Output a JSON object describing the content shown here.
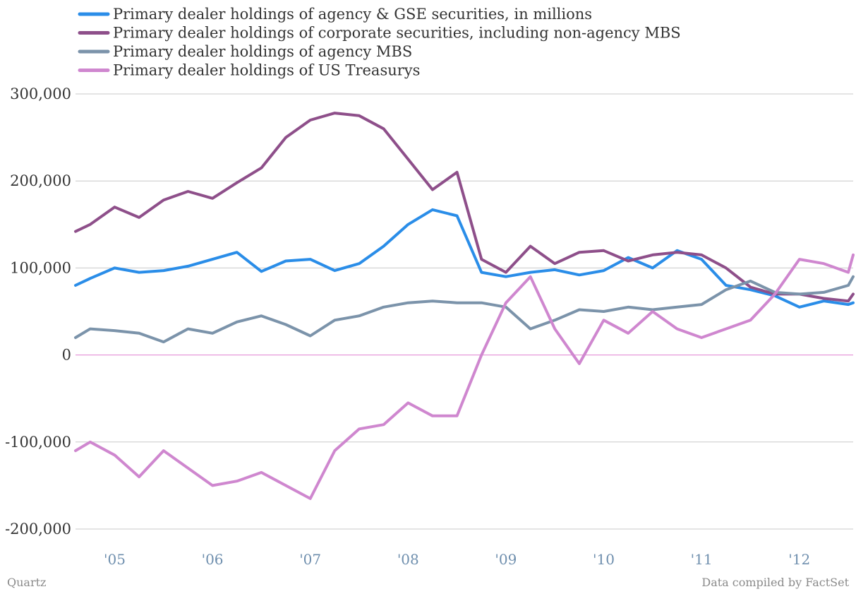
{
  "chart_data": {
    "type": "line",
    "title": "",
    "xlabel": "",
    "ylabel": "",
    "ylim": [
      -200000,
      300000
    ],
    "xlim": [
      2004.6,
      2012.55
    ],
    "x_ticks": [
      2005,
      2006,
      2007,
      2008,
      2009,
      2010,
      2011,
      2012
    ],
    "x_tick_labels": [
      "'05",
      "'06",
      "'07",
      "'08",
      "'09",
      "'10",
      "'11",
      "'12"
    ],
    "y_ticks": [
      300000,
      200000,
      100000,
      0,
      -100000,
      -200000
    ],
    "y_tick_labels": [
      "300,000",
      "200,000",
      "100,000",
      "0",
      "-100,000",
      "-200,000"
    ],
    "grid": true,
    "zero_line_color": "#e07fd0",
    "legend_position": "top-left",
    "x": [
      2004.6,
      2004.75,
      2005.0,
      2005.25,
      2005.5,
      2005.75,
      2006.0,
      2006.25,
      2006.5,
      2006.75,
      2007.0,
      2007.25,
      2007.5,
      2007.75,
      2008.0,
      2008.25,
      2008.5,
      2008.75,
      2009.0,
      2009.25,
      2009.5,
      2009.75,
      2010.0,
      2010.25,
      2010.5,
      2010.75,
      2011.0,
      2011.25,
      2011.5,
      2011.75,
      2012.0,
      2012.25,
      2012.5,
      2012.55
    ],
    "series": [
      {
        "name": "Primary dealer holdings of agency & GSE securities, in millions",
        "color": "#2a8de8",
        "values": [
          80000,
          88000,
          100000,
          95000,
          97000,
          102000,
          110000,
          118000,
          96000,
          108000,
          110000,
          97000,
          105000,
          125000,
          150000,
          167000,
          160000,
          95000,
          90000,
          95000,
          98000,
          92000,
          97000,
          112000,
          100000,
          120000,
          110000,
          80000,
          75000,
          68000,
          55000,
          62000,
          58000,
          60000
        ]
      },
      {
        "name": "Primary dealer holdings of corporate securities, including non-agency MBS",
        "color": "#8e4f8a",
        "values": [
          142000,
          150000,
          170000,
          158000,
          178000,
          188000,
          180000,
          198000,
          215000,
          250000,
          270000,
          278000,
          275000,
          260000,
          225000,
          190000,
          210000,
          110000,
          95000,
          125000,
          105000,
          118000,
          120000,
          108000,
          115000,
          118000,
          115000,
          100000,
          78000,
          70000,
          70000,
          65000,
          62000,
          70000
        ]
      },
      {
        "name": "Primary dealer holdings of agency MBS",
        "color": "#7b93aa",
        "values": [
          20000,
          30000,
          28000,
          25000,
          15000,
          30000,
          25000,
          38000,
          45000,
          35000,
          22000,
          40000,
          45000,
          55000,
          60000,
          62000,
          60000,
          60000,
          55000,
          30000,
          40000,
          52000,
          50000,
          55000,
          52000,
          55000,
          58000,
          75000,
          85000,
          72000,
          70000,
          72000,
          80000,
          90000
        ]
      },
      {
        "name": "Primary dealer holdings of US Treasurys",
        "color": "#cf87cf",
        "values": [
          -110000,
          -100000,
          -115000,
          -140000,
          -110000,
          -130000,
          -150000,
          -145000,
          -135000,
          -150000,
          -165000,
          -110000,
          -85000,
          -80000,
          -55000,
          -70000,
          -70000,
          0,
          60000,
          90000,
          30000,
          -10000,
          40000,
          25000,
          50000,
          30000,
          20000,
          30000,
          40000,
          70000,
          110000,
          105000,
          95000,
          115000
        ]
      }
    ]
  },
  "footer": {
    "left": "Quartz",
    "right": "Data compiled by FactSet"
  }
}
